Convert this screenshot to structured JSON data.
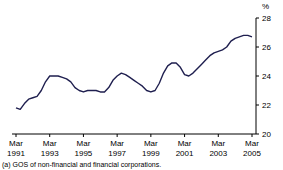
{
  "chart_data": {
    "type": "line",
    "ylabel": "%",
    "note": "(a) GOS of non-financial and financial corporations.",
    "categories": [
      "Mar 1991",
      null,
      null,
      null,
      null,
      null,
      null,
      null,
      "Mar 1993",
      null,
      null,
      null,
      null,
      null,
      null,
      null,
      "Mar 1995",
      null,
      null,
      null,
      null,
      null,
      null,
      null,
      "Mar 1997",
      null,
      null,
      null,
      null,
      null,
      null,
      null,
      "Mar 1999",
      null,
      null,
      null,
      null,
      null,
      null,
      null,
      "Mar 2001",
      null,
      null,
      null,
      null,
      null,
      null,
      null,
      "Mar 2003",
      null,
      null,
      null,
      null,
      null,
      null,
      null,
      "Mar 2005"
    ],
    "values": [
      21.8,
      21.7,
      22.1,
      22.4,
      22.5,
      22.6,
      23.0,
      23.6,
      24.0,
      24.0,
      24.0,
      23.9,
      23.8,
      23.6,
      23.2,
      23.0,
      22.9,
      23.0,
      23.0,
      23.0,
      22.9,
      22.9,
      23.2,
      23.7,
      24.0,
      24.2,
      24.1,
      23.9,
      23.7,
      23.5,
      23.3,
      23.0,
      22.9,
      23.0,
      23.5,
      24.2,
      24.7,
      24.9,
      24.9,
      24.6,
      24.1,
      24.0,
      24.2,
      24.5,
      24.8,
      25.1,
      25.4,
      25.6,
      25.7,
      25.8,
      26.0,
      26.4,
      26.6,
      26.7,
      26.8,
      26.8,
      26.7
    ],
    "color": "#1f1f4f",
    "ylim": [
      20,
      28
    ],
    "yticks": [
      20,
      22,
      24,
      26,
      28
    ],
    "grid": false
  }
}
